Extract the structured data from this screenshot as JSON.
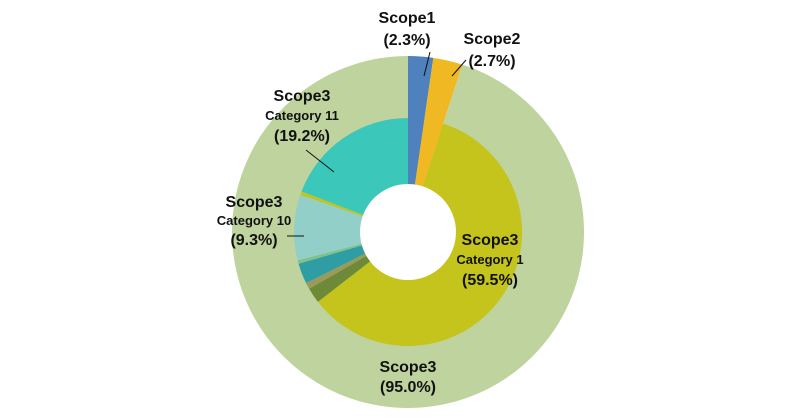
{
  "chart_data": {
    "type": "pie",
    "style": "nested-donut",
    "outer_ring": [
      {
        "name": "Scope1",
        "value": 2.3,
        "label": "(2.3%)",
        "color": "#4f81bd"
      },
      {
        "name": "Scope2",
        "value": 2.7,
        "label": "(2.7%)",
        "color": "#f0b823"
      },
      {
        "name": "Scope3",
        "value": 95.0,
        "label": "(95.0%)",
        "color": "#bfd39e"
      }
    ],
    "inner_ring": [
      {
        "name": "Scope1",
        "value": 2.3,
        "color": "#4f81bd"
      },
      {
        "name": "Scope2",
        "value": 2.7,
        "color": "#f0b823"
      },
      {
        "name": "Scope3",
        "sub": "Category 1",
        "value": 59.5,
        "label": "(59.5%)",
        "color": "#c4c41c"
      },
      {
        "name": "",
        "value": 2.2,
        "color": "#6e8a38"
      },
      {
        "name": "",
        "value": 0.9,
        "color": "#9a9a5a"
      },
      {
        "name": "",
        "value": 2.9,
        "color": "#2e9ea4"
      },
      {
        "name": "",
        "value": 0.5,
        "color": "#7fc28a"
      },
      {
        "name": "Scope3",
        "sub": "Category 10",
        "value": 9.3,
        "label": "(9.3%)",
        "color": "#93cfc9"
      },
      {
        "name": "",
        "value": 0.5,
        "color": "#c4c41c"
      },
      {
        "name": "Scope3",
        "sub": "Category 11",
        "value": 19.2,
        "label": "(19.2%)",
        "color": "#3bc8ba"
      }
    ]
  },
  "labels": {
    "scope1": {
      "title": "Scope1",
      "pct": "(2.3%)"
    },
    "scope2": {
      "title": "Scope2",
      "pct": "(2.7%)"
    },
    "scope3_total": {
      "title": "Scope3",
      "pct": "(95.0%)"
    },
    "cat1": {
      "title": "Scope3",
      "sub": "Category 1",
      "pct": "(59.5%)"
    },
    "cat10": {
      "title": "Scope3",
      "sub": "Category 10",
      "pct": "(9.3%)"
    },
    "cat11": {
      "title": "Scope3",
      "sub": "Category 11",
      "pct": "(19.2%)"
    }
  }
}
